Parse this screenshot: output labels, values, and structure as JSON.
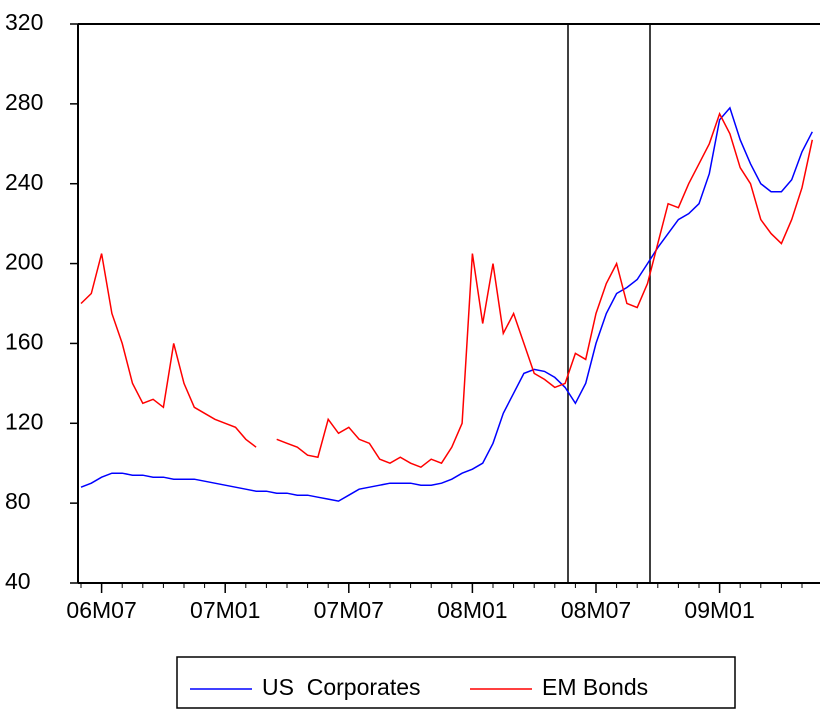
{
  "chart_data": {
    "type": "line",
    "categories": [
      null,
      null,
      "06M07",
      null,
      null,
      null,
      null,
      null,
      null,
      null,
      null,
      null,
      null,
      null,
      "07M01",
      null,
      null,
      null,
      null,
      null,
      null,
      null,
      null,
      null,
      null,
      null,
      "07M07",
      null,
      null,
      null,
      null,
      null,
      null,
      null,
      null,
      null,
      null,
      null,
      "08M01",
      null,
      null,
      null,
      null,
      null,
      null,
      null,
      null,
      null,
      null,
      null,
      "08M07",
      null,
      null,
      null,
      null,
      null,
      null,
      null,
      null,
      null,
      null,
      null,
      "09M01",
      null,
      null,
      null,
      null,
      null,
      null,
      null,
      null,
      null
    ],
    "series": [
      {
        "name": "US  Corporates",
        "color": "#0000ff",
        "values": [
          88,
          90,
          93,
          95,
          95,
          94,
          94,
          93,
          93,
          92,
          92,
          92,
          91,
          90,
          89,
          88,
          87,
          86,
          86,
          85,
          85,
          84,
          84,
          83,
          82,
          81,
          84,
          87,
          88,
          89,
          90,
          90,
          90,
          89,
          89,
          90,
          92,
          95,
          97,
          100,
          110,
          125,
          135,
          145,
          147,
          146,
          143,
          138,
          130,
          140,
          160,
          175,
          185,
          188,
          192,
          200,
          208,
          215,
          222,
          225,
          230,
          245,
          272,
          278,
          262,
          250,
          240,
          236,
          236,
          242,
          256,
          266
        ]
      },
      {
        "name": "EM Bonds",
        "color": "#ff0000",
        "values": [
          180,
          185,
          205,
          175,
          160,
          140,
          130,
          132,
          128,
          160,
          140,
          128,
          125,
          122,
          120,
          118,
          112,
          108,
          null,
          112,
          110,
          108,
          104,
          103,
          122,
          115,
          118,
          112,
          110,
          102,
          100,
          103,
          100,
          98,
          102,
          100,
          108,
          120,
          205,
          170,
          200,
          165,
          175,
          160,
          145,
          142,
          138,
          140,
          155,
          152,
          175,
          190,
          200,
          180,
          178,
          190,
          210,
          230,
          228,
          240,
          250,
          260,
          275,
          265,
          248,
          240,
          222,
          215,
          210,
          222,
          238,
          262
        ]
      }
    ],
    "ylim": [
      40,
      320
    ],
    "yticks": [
      40,
      80,
      120,
      160,
      200,
      240,
      280,
      320
    ],
    "legend": "bottom"
  }
}
